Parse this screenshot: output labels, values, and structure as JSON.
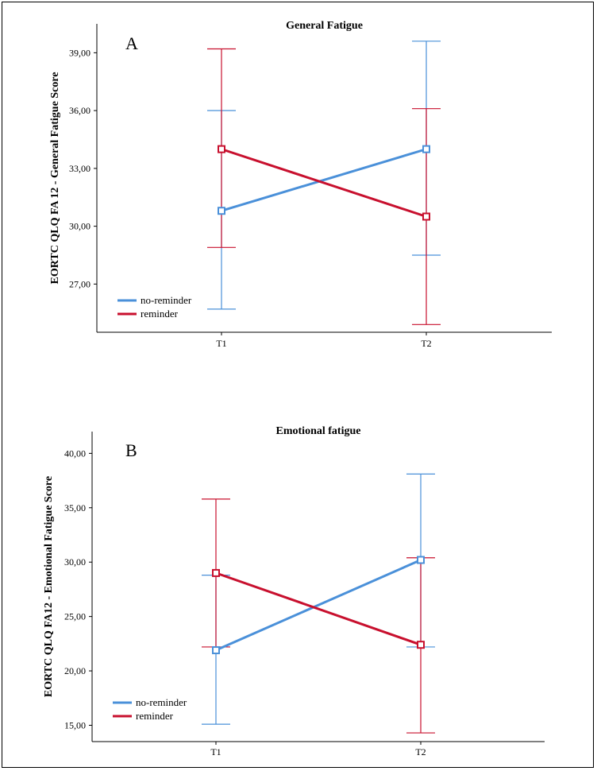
{
  "chart_data": [
    {
      "panel": "A",
      "type": "line",
      "title": "General Fatigue",
      "xlabel": "",
      "ylabel": "EORTC QLQ FA 12 - General Fatigue Score",
      "categories": [
        "T1",
        "T2"
      ],
      "ylim": [
        24.5,
        40.5
      ],
      "yticks": [
        27,
        30,
        33,
        36,
        39
      ],
      "ytick_labels": [
        "27,00",
        "30,00",
        "33,00",
        "36,00",
        "39,00"
      ],
      "series": [
        {
          "name": "no-reminder",
          "color": "#4a90d9",
          "values": [
            30.8,
            34.0
          ],
          "err_low": [
            25.7,
            28.5
          ],
          "err_high": [
            36.0,
            39.6
          ]
        },
        {
          "name": "reminder",
          "color": "#c8102e",
          "values": [
            34.0,
            30.5
          ],
          "err_low": [
            28.9,
            24.9
          ],
          "err_high": [
            39.2,
            36.1
          ]
        }
      ],
      "legend": "bottom-left"
    },
    {
      "panel": "B",
      "type": "line",
      "title": "Emotional fatigue",
      "xlabel": "",
      "ylabel": "EORTC QLQ FA12 - Emotional Fatigue Score",
      "categories": [
        "T1",
        "T2"
      ],
      "ylim": [
        13.5,
        42.0
      ],
      "yticks": [
        15,
        20,
        25,
        30,
        35,
        40
      ],
      "ytick_labels": [
        "15,00",
        "20,00",
        "25,00",
        "30,00",
        "35,00",
        "40,00"
      ],
      "series": [
        {
          "name": "no-reminder",
          "color": "#4a90d9",
          "values": [
            21.9,
            30.2
          ],
          "err_low": [
            15.1,
            22.2
          ],
          "err_high": [
            28.8,
            38.1
          ]
        },
        {
          "name": "reminder",
          "color": "#c8102e",
          "values": [
            29.0,
            22.4
          ],
          "err_low": [
            22.2,
            14.3
          ],
          "err_high": [
            35.8,
            30.4
          ]
        }
      ],
      "legend": "bottom-left"
    }
  ]
}
